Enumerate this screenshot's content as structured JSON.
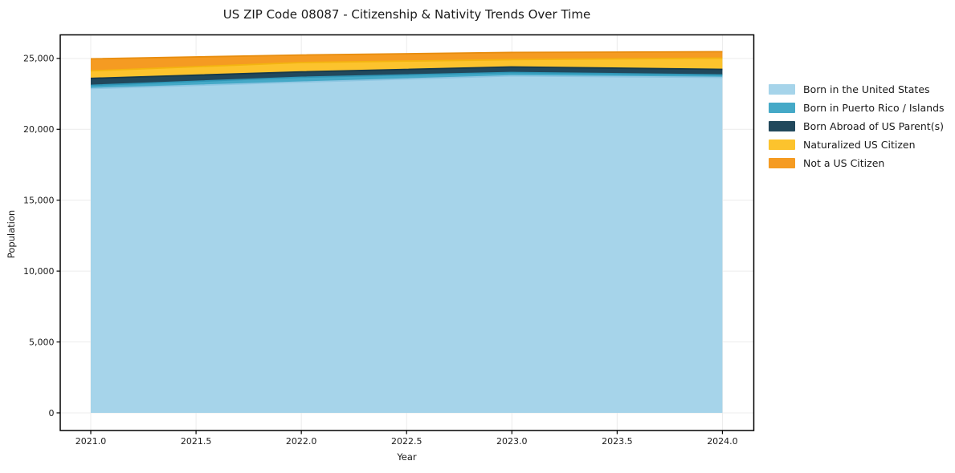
{
  "page": {
    "background": "#ffffff"
  },
  "chart_data": {
    "type": "area",
    "stacked": true,
    "title": "US ZIP Code 08087 - Citizenship & Nativity Trends Over Time",
    "xlabel": "Year",
    "ylabel": "Population",
    "x": [
      2021,
      2022,
      2023,
      2024
    ],
    "series": [
      {
        "name": "Born in the United States",
        "color": "#a6d4ea",
        "edge": "#8ec6e2",
        "values": [
          22870,
          23330,
          23770,
          23660
        ]
      },
      {
        "name": "Born in Puerto Rico / Islands",
        "color": "#45a9c7",
        "edge": "#2f97b8",
        "values": [
          230,
          340,
          230,
          170
        ]
      },
      {
        "name": "Born Abroad of US Parent(s)",
        "color": "#21485c",
        "edge": "#173a4b",
        "values": [
          490,
          380,
          400,
          400
        ]
      },
      {
        "name": "Naturalized US Citizen",
        "color": "#fcc32d",
        "edge": "#f3b410",
        "values": [
          530,
          660,
          510,
          790
        ]
      },
      {
        "name": "Not a US Citizen",
        "color": "#f59b22",
        "edge": "#e88d0e",
        "values": [
          850,
          530,
          510,
          450
        ]
      }
    ],
    "xticks": {
      "values": [
        2021.0,
        2021.5,
        2022.0,
        2022.5,
        2023.0,
        2023.5,
        2024.0
      ],
      "labels": [
        "2021.0",
        "2021.5",
        "2022.0",
        "2022.5",
        "2023.0",
        "2023.5",
        "2024.0"
      ]
    },
    "yticks": {
      "values": [
        0,
        5000,
        10000,
        15000,
        20000,
        25000
      ],
      "labels": [
        "0",
        "5,000",
        "10,000",
        "15,000",
        "20,000",
        "25,000"
      ]
    },
    "xlim": [
      2020.855,
      2024.149
    ],
    "ylim": [
      -1245,
      26660
    ],
    "grid": true,
    "grid_color": "#ececec",
    "spine_color": "#000000",
    "tick_label_color": "#1a1a1a",
    "legend_position": "right",
    "fill_opacity": 1.0
  }
}
